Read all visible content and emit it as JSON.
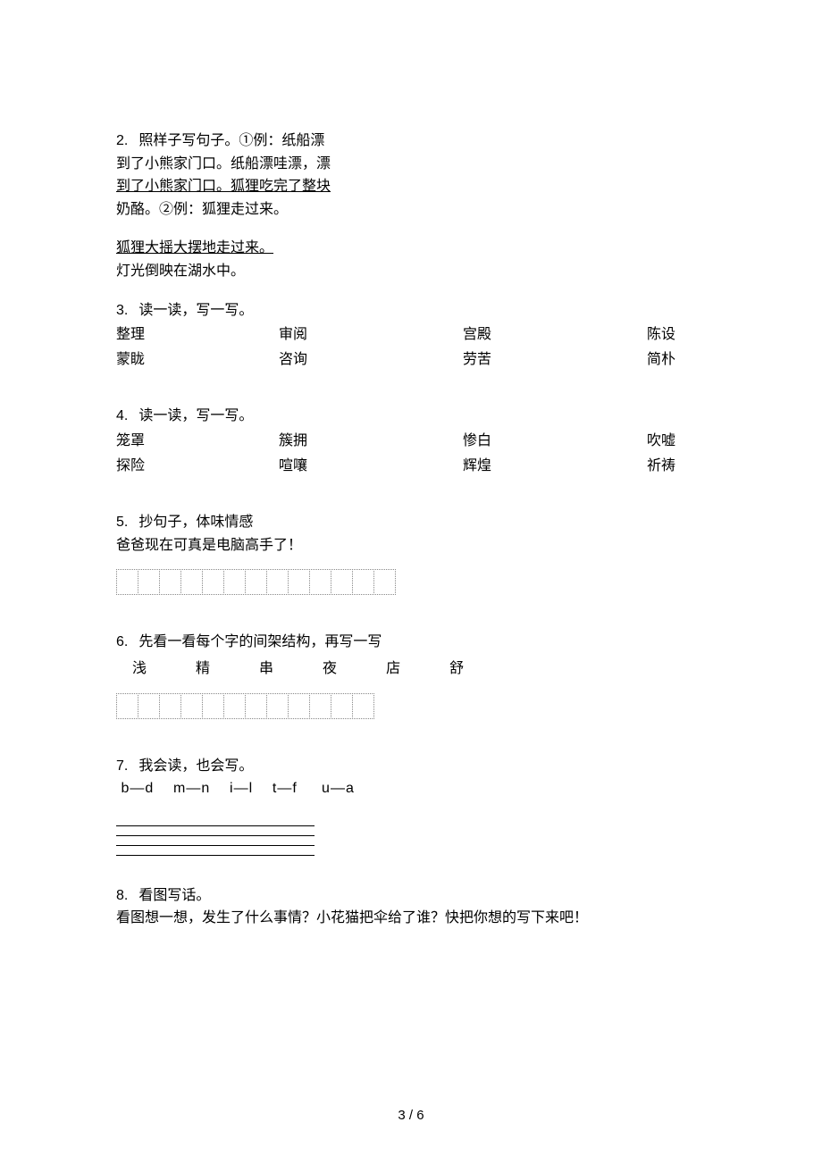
{
  "q2": {
    "num": "2.",
    "l1": "照样子写句子。①例：纸船漂",
    "l2": "到了小熊家门口。纸船漂哇漂，漂",
    "l3": "到了小熊家门口。狐狸吃完了整块",
    "l4": "奶酪。②例：狐狸走过来。",
    "l5": "狐狸大摇大摆地走过来。",
    "l6": "灯光倒映在湖水中。"
  },
  "q3": {
    "num": "3.",
    "title": "读一读，写一写。",
    "r1c1": "整理",
    "r1c2": "审阅",
    "r1c3": "宫殿",
    "r1c4": "陈设",
    "r2c1": "蒙眬",
    "r2c2": "咨询",
    "r2c3": "劳苦",
    "r2c4": "简朴"
  },
  "q4": {
    "num": "4.",
    "title": "读一读，写一写。",
    "r1c1": "笼罩",
    "r1c2": "簇拥",
    "r1c3": "惨白",
    "r1c4": "吹嘘",
    "r2c1": "探险",
    "r2c2": "喧嚷",
    "r2c3": "辉煌",
    "r2c4": "祈祷"
  },
  "q5": {
    "num": "5.",
    "title": "抄句子，体味情感",
    "sentence": "爸爸现在可真是电脑高手了！",
    "cells": 13
  },
  "q6": {
    "num": "6.",
    "title": "先看一看每个字的间架结构，再写一写",
    "chars": [
      "浅",
      "精",
      "串",
      "夜",
      "店",
      "舒"
    ],
    "cells": 12
  },
  "q7": {
    "num": "7.",
    "title": "我会读，也会写。",
    "letters": " b—d    m—n    i—l    t—f     u—a"
  },
  "q8": {
    "num": "8.",
    "title": "看图写话。",
    "body": "看图想一想，发生了什么事情？小花猫把伞给了谁？快把你想的写下来吧！"
  },
  "footer": "3 / 6"
}
